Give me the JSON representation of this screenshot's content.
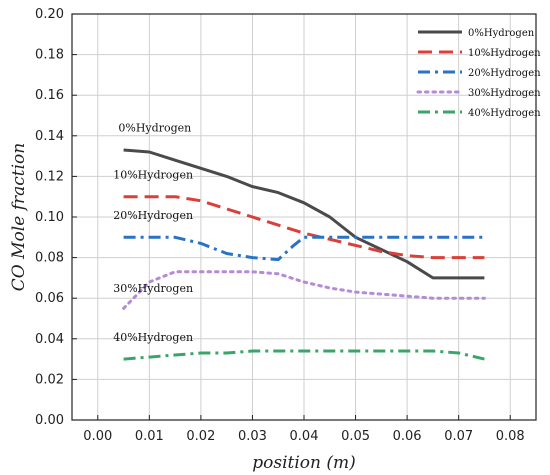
{
  "chart_data": {
    "type": "line",
    "xlabel": "position (m)",
    "ylabel": "CO Mole fraction",
    "xlim": [
      -0.005,
      0.085
    ],
    "ylim": [
      0.0,
      0.2
    ],
    "x_ticks": [
      "0.00",
      "0.01",
      "0.02",
      "0.03",
      "0.04",
      "0.05",
      "0.06",
      "0.07",
      "0.08"
    ],
    "y_ticks": [
      "0.00",
      "0.02",
      "0.04",
      "0.06",
      "0.08",
      "0.10",
      "0.12",
      "0.14",
      "0.16",
      "0.18",
      "0.20"
    ],
    "grid": true,
    "legend_position": "top-right",
    "series": [
      {
        "name": "0%Hydrogen",
        "color": "#4a4a4a",
        "dash": "solid",
        "x": [
          0.005,
          0.01,
          0.015,
          0.02,
          0.025,
          0.03,
          0.035,
          0.04,
          0.045,
          0.05,
          0.055,
          0.06,
          0.065,
          0.07,
          0.075
        ],
        "y": [
          0.133,
          0.132,
          0.128,
          0.124,
          0.12,
          0.115,
          0.112,
          0.107,
          0.1,
          0.09,
          0.084,
          0.078,
          0.07,
          0.07,
          0.07
        ]
      },
      {
        "name": "10%Hydrogen",
        "color": "#d9403a",
        "dash": "dashed",
        "x": [
          0.005,
          0.01,
          0.015,
          0.02,
          0.025,
          0.03,
          0.035,
          0.04,
          0.045,
          0.05,
          0.055,
          0.06,
          0.065,
          0.07,
          0.075
        ],
        "y": [
          0.11,
          0.11,
          0.11,
          0.108,
          0.104,
          0.1,
          0.096,
          0.092,
          0.089,
          0.086,
          0.083,
          0.081,
          0.08,
          0.08,
          0.08
        ]
      },
      {
        "name": "20%Hydrogen",
        "color": "#2a72c4",
        "dash": "dash-dot",
        "x": [
          0.005,
          0.01,
          0.015,
          0.02,
          0.025,
          0.03,
          0.035,
          0.038,
          0.04,
          0.045,
          0.05,
          0.055,
          0.06,
          0.065,
          0.07,
          0.075
        ],
        "y": [
          0.09,
          0.09,
          0.09,
          0.087,
          0.082,
          0.08,
          0.079,
          0.086,
          0.09,
          0.09,
          0.09,
          0.09,
          0.09,
          0.09,
          0.09,
          0.09
        ]
      },
      {
        "name": "30%Hydrogen",
        "color": "#b68ad6",
        "dash": "dotted",
        "x": [
          0.005,
          0.01,
          0.015,
          0.02,
          0.025,
          0.03,
          0.035,
          0.04,
          0.045,
          0.05,
          0.055,
          0.06,
          0.065,
          0.07,
          0.075
        ],
        "y": [
          0.055,
          0.068,
          0.073,
          0.073,
          0.073,
          0.073,
          0.072,
          0.068,
          0.065,
          0.063,
          0.062,
          0.061,
          0.06,
          0.06,
          0.06
        ]
      },
      {
        "name": "40%Hydrogen",
        "color": "#3aa56a",
        "dash": "dash-dot",
        "x": [
          0.005,
          0.01,
          0.015,
          0.02,
          0.025,
          0.03,
          0.035,
          0.04,
          0.045,
          0.05,
          0.055,
          0.06,
          0.065,
          0.07,
          0.075
        ],
        "y": [
          0.03,
          0.031,
          0.032,
          0.033,
          0.033,
          0.034,
          0.034,
          0.034,
          0.034,
          0.034,
          0.034,
          0.034,
          0.034,
          0.033,
          0.03
        ]
      }
    ],
    "annotations": [
      {
        "text": "0%Hydrogen",
        "x": 0.004,
        "y": 0.142
      },
      {
        "text": "10%Hydrogen",
        "x": 0.003,
        "y": 0.119
      },
      {
        "text": "20%Hydrogen",
        "x": 0.003,
        "y": 0.099
      },
      {
        "text": "30%Hydrogen",
        "x": 0.003,
        "y": 0.063
      },
      {
        "text": "40%Hydrogen",
        "x": 0.003,
        "y": 0.039
      }
    ]
  }
}
